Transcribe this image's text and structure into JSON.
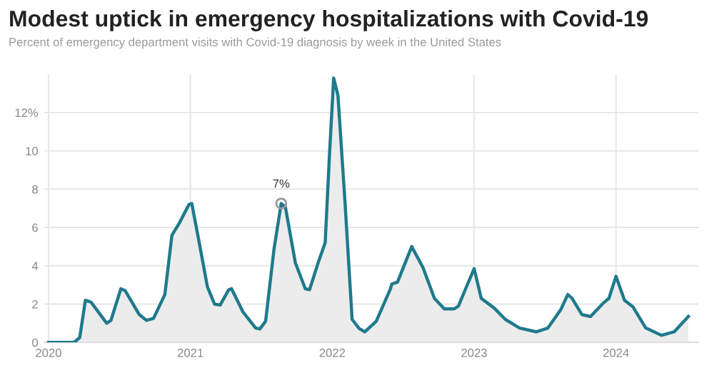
{
  "chart_data": {
    "type": "area",
    "title": "Modest uptick in emergency hospitalizations with Covid-19",
    "subtitle": "Percent of emergency department visits with Covid-19 diagnosis by week in the United States",
    "series": [
      {
        "color": "#1f7a8c",
        "x": [
          2020.0,
          2020.18,
          2020.22,
          2020.26,
          2020.3,
          2020.41,
          2020.44,
          2020.51,
          2020.54,
          2020.64,
          2020.69,
          2020.74,
          2020.82,
          2020.87,
          2020.92,
          2020.99,
          2021.01,
          2021.07,
          2021.12,
          2021.17,
          2021.21,
          2021.27,
          2021.29,
          2021.37,
          2021.46,
          2021.49,
          2021.53,
          2021.59,
          2021.64,
          2021.67,
          2021.74,
          2021.81,
          2021.84,
          2021.9,
          2021.95,
          2021.98,
          2022.01,
          2022.04,
          2022.09,
          2022.14,
          2022.19,
          2022.23,
          2022.31,
          2022.36,
          2022.41,
          2022.42,
          2022.46,
          2022.56,
          2022.64,
          2022.72,
          2022.79,
          2022.86,
          2022.89,
          2022.94,
          2023.0,
          2023.05,
          2023.14,
          2023.22,
          2023.32,
          2023.44,
          2023.52,
          2023.61,
          2023.66,
          2023.69,
          2023.76,
          2023.82,
          2023.91,
          2023.95,
          2024.0,
          2024.06,
          2024.12,
          2024.21,
          2024.32,
          2024.41,
          2024.51
        ],
        "values": [
          0,
          0,
          0.25,
          2.2,
          2.1,
          1.0,
          1.15,
          2.8,
          2.7,
          1.45,
          1.15,
          1.25,
          2.5,
          5.6,
          6.2,
          7.2,
          7.25,
          4.9,
          2.9,
          2.0,
          1.95,
          2.75,
          2.8,
          1.6,
          0.75,
          0.7,
          1.1,
          4.9,
          7.25,
          7.05,
          4.15,
          2.8,
          2.75,
          4.15,
          5.2,
          9.75,
          13.8,
          12.9,
          7.3,
          1.2,
          0.72,
          0.55,
          1.1,
          1.95,
          2.8,
          3.05,
          3.15,
          5.0,
          3.9,
          2.3,
          1.75,
          1.75,
          1.9,
          2.8,
          3.85,
          2.3,
          1.8,
          1.2,
          0.75,
          0.55,
          0.75,
          1.7,
          2.5,
          2.3,
          1.45,
          1.35,
          2.05,
          2.3,
          3.45,
          2.2,
          1.85,
          0.75,
          0.37,
          0.55,
          1.35
        ]
      }
    ],
    "xlim": [
      2019.97,
      2024.58
    ],
    "xticks": [
      2020,
      2021,
      2022,
      2023,
      2024
    ],
    "ylim": [
      0,
      14
    ],
    "yticks": [
      0,
      2,
      4,
      6,
      8,
      10,
      {
        "value": 12,
        "label": "12%"
      }
    ],
    "grid": true,
    "annotations": [
      {
        "text": "7%",
        "x": 2021.64,
        "y": 7.25
      }
    ]
  }
}
